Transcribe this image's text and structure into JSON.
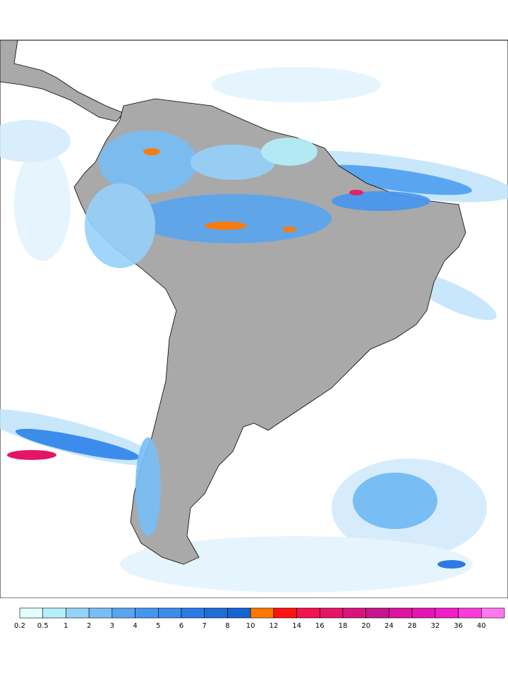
{
  "colorbar": {
    "levels": [
      0.2,
      0.5,
      1,
      2,
      3,
      4,
      5,
      6,
      7,
      8,
      10,
      12,
      14,
      16,
      18,
      20,
      24,
      28,
      32,
      36,
      40
    ],
    "colors": [
      "#e4fffe",
      "#b4f0fa",
      "#96d2fa",
      "#78bef5",
      "#5aa5f0",
      "#4696f0",
      "#3c8ceb",
      "#2d7ae6",
      "#1e6ed7",
      "#1464d2",
      "#ff7800",
      "#ff1414",
      "#f01450",
      "#e61464",
      "#d7147d",
      "#c8148c",
      "#dc14a0",
      "#e614b4",
      "#f01ec8",
      "#fa3cdc",
      "#ff78f0"
    ]
  }
}
